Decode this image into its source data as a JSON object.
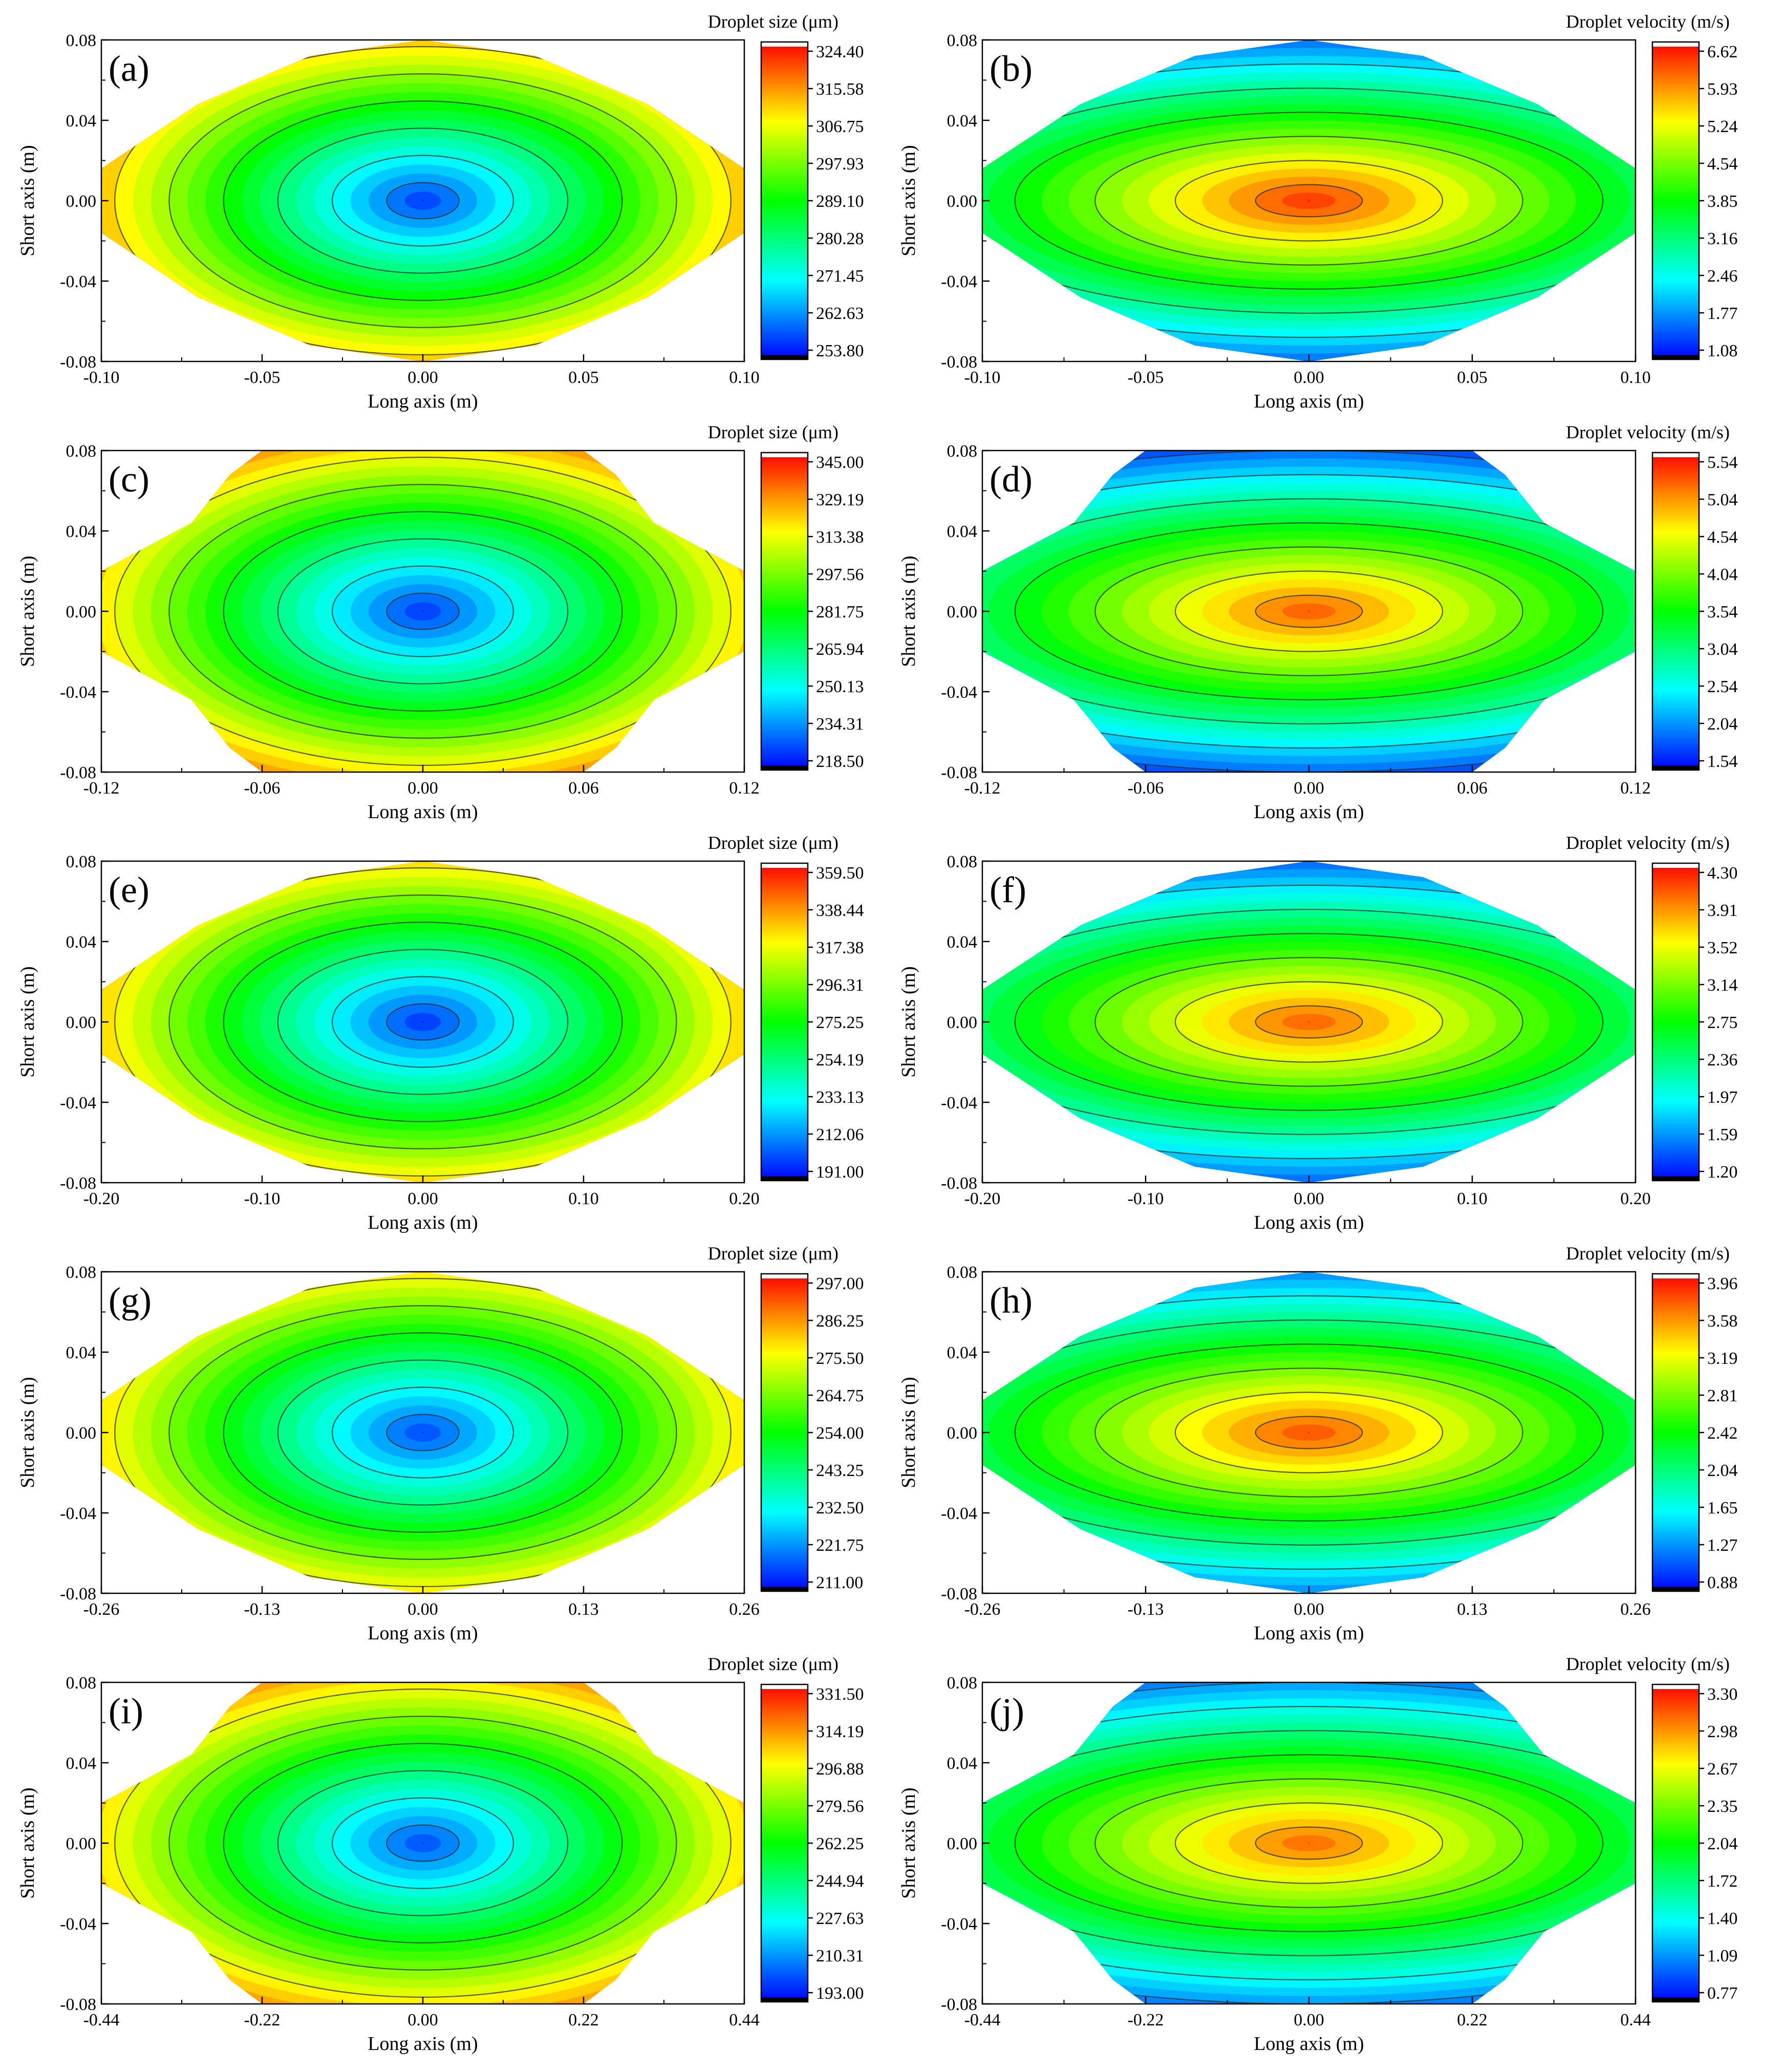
{
  "figure": {
    "long_axis_label": "Long axis (m)",
    "short_axis_label": "Short axis (m)",
    "y_ticks": [
      "-0.08",
      "-0.04",
      "0.00",
      "0.04",
      "0.08"
    ]
  },
  "chart_data": [
    {
      "type": "heatmap",
      "panel": "(a)",
      "quantity": "size",
      "colorbar_title": "Droplet size (μm)",
      "colorbar_ticks": [
        "324.40",
        "315.58",
        "306.75",
        "297.93",
        "289.10",
        "280.28",
        "271.45",
        "262.63",
        "253.80"
      ],
      "x_ticks": [
        "-0.10",
        "-0.05",
        "0.00",
        "0.05",
        "0.10"
      ],
      "xlim": [
        -0.1,
        0.1
      ],
      "ylim": [
        -0.08,
        0.08
      ],
      "zlim": [
        253.8,
        324.4
      ],
      "xlabel": "Long axis (m)",
      "ylabel": "Short axis (m)",
      "center_value": 256,
      "edge_value": 322,
      "outline": "diamond"
    },
    {
      "type": "heatmap",
      "panel": "(b)",
      "quantity": "velocity",
      "colorbar_title": "Droplet velocity (m/s)",
      "colorbar_ticks": [
        "6.62",
        "5.93",
        "5.24",
        "4.54",
        "3.85",
        "3.16",
        "2.46",
        "1.77",
        "1.08"
      ],
      "x_ticks": [
        "-0.10",
        "-0.05",
        "0.00",
        "0.05",
        "0.10"
      ],
      "xlim": [
        -0.1,
        0.1
      ],
      "ylim": [
        -0.08,
        0.08
      ],
      "zlim": [
        1.08,
        6.62
      ],
      "xlabel": "Long axis (m)",
      "ylabel": "Short axis (m)",
      "center_value": 6.5,
      "edge_value": 1.3,
      "outline": "diamond"
    },
    {
      "type": "heatmap",
      "panel": "(c)",
      "quantity": "size",
      "colorbar_title": "Droplet size (μm)",
      "colorbar_ticks": [
        "345.00",
        "329.19",
        "313.38",
        "297.56",
        "281.75",
        "265.94",
        "250.13",
        "234.31",
        "218.50"
      ],
      "x_ticks": [
        "-0.12",
        "-0.06",
        "0.00",
        "0.06",
        "0.12"
      ],
      "xlim": [
        -0.12,
        0.12
      ],
      "ylim": [
        -0.08,
        0.08
      ],
      "zlim": [
        218.5,
        345.0
      ],
      "xlabel": "Long axis (m)",
      "ylabel": "Short axis (m)",
      "center_value": 222,
      "edge_value": 335,
      "outline": "wide"
    },
    {
      "type": "heatmap",
      "panel": "(d)",
      "quantity": "velocity",
      "colorbar_title": "Droplet velocity (m/s)",
      "colorbar_ticks": [
        "5.54",
        "5.04",
        "4.54",
        "4.04",
        "3.54",
        "3.04",
        "2.54",
        "2.04",
        "1.54"
      ],
      "x_ticks": [
        "-0.12",
        "-0.06",
        "0.00",
        "0.06",
        "0.12"
      ],
      "xlim": [
        -0.12,
        0.12
      ],
      "ylim": [
        -0.08,
        0.08
      ],
      "zlim": [
        1.54,
        5.54
      ],
      "xlabel": "Long axis (m)",
      "ylabel": "Short axis (m)",
      "center_value": 5.3,
      "edge_value": 1.7,
      "outline": "wide"
    },
    {
      "type": "heatmap",
      "panel": "(e)",
      "quantity": "size",
      "colorbar_title": "Droplet size (μm)",
      "colorbar_ticks": [
        "359.50",
        "338.44",
        "317.38",
        "296.31",
        "275.25",
        "254.19",
        "233.13",
        "212.06",
        "191.00"
      ],
      "x_ticks": [
        "-0.20",
        "-0.10",
        "0.00",
        "0.10",
        "0.20"
      ],
      "xlim": [
        -0.2,
        0.2
      ],
      "ylim": [
        -0.08,
        0.08
      ],
      "zlim": [
        191.0,
        359.5
      ],
      "xlabel": "Long axis (m)",
      "ylabel": "Short axis (m)",
      "center_value": 195,
      "edge_value": 350,
      "outline": "diamond"
    },
    {
      "type": "heatmap",
      "panel": "(f)",
      "quantity": "velocity",
      "colorbar_title": "Droplet velocity (m/s)",
      "colorbar_ticks": [
        "4.30",
        "3.91",
        "3.52",
        "3.14",
        "2.75",
        "2.36",
        "1.97",
        "1.59",
        "1.20"
      ],
      "x_ticks": [
        "-0.20",
        "-0.10",
        "0.00",
        "0.10",
        "0.20"
      ],
      "xlim": [
        -0.2,
        0.2
      ],
      "ylim": [
        -0.08,
        0.08
      ],
      "zlim": [
        1.2,
        4.3
      ],
      "xlabel": "Long axis (m)",
      "ylabel": "Short axis (m)",
      "center_value": 4.1,
      "edge_value": 1.3,
      "outline": "diamond"
    },
    {
      "type": "heatmap",
      "panel": "(g)",
      "quantity": "size",
      "colorbar_title": "Droplet size (μm)",
      "colorbar_ticks": [
        "297.00",
        "286.25",
        "275.50",
        "264.75",
        "254.00",
        "243.25",
        "232.50",
        "221.75",
        "211.00"
      ],
      "x_ticks": [
        "-0.26",
        "-0.13",
        "0.00",
        "0.13",
        "0.26"
      ],
      "xlim": [
        -0.26,
        0.26
      ],
      "ylim": [
        -0.08,
        0.08
      ],
      "zlim": [
        211.0,
        297.0
      ],
      "xlabel": "Long axis (m)",
      "ylabel": "Short axis (m)",
      "center_value": 215,
      "edge_value": 290,
      "outline": "diamond"
    },
    {
      "type": "heatmap",
      "panel": "(h)",
      "quantity": "velocity",
      "colorbar_title": "Droplet velocity (m/s)",
      "colorbar_ticks": [
        "3.96",
        "3.58",
        "3.19",
        "2.81",
        "2.42",
        "2.04",
        "1.65",
        "1.27",
        "0.88"
      ],
      "x_ticks": [
        "-0.26",
        "-0.13",
        "0.00",
        "0.13",
        "0.26"
      ],
      "xlim": [
        -0.26,
        0.26
      ],
      "ylim": [
        -0.08,
        0.08
      ],
      "zlim": [
        0.88,
        3.96
      ],
      "xlabel": "Long axis (m)",
      "ylabel": "Short axis (m)",
      "center_value": 3.8,
      "edge_value": 1.1,
      "outline": "diamond"
    },
    {
      "type": "heatmap",
      "panel": "(i)",
      "quantity": "size",
      "colorbar_title": "Droplet size (μm)",
      "colorbar_ticks": [
        "331.50",
        "314.19",
        "296.88",
        "279.56",
        "262.25",
        "244.94",
        "227.63",
        "210.31",
        "193.00"
      ],
      "x_ticks": [
        "-0.44",
        "-0.22",
        "0.00",
        "0.22",
        "0.44"
      ],
      "xlim": [
        -0.44,
        0.44
      ],
      "ylim": [
        -0.08,
        0.08
      ],
      "zlim": [
        193.0,
        331.5
      ],
      "xlabel": "Long axis (m)",
      "ylabel": "Short axis (m)",
      "center_value": 200,
      "edge_value": 320,
      "outline": "wide"
    },
    {
      "type": "heatmap",
      "panel": "(j)",
      "quantity": "velocity",
      "colorbar_title": "Droplet velocity (m/s)",
      "colorbar_ticks": [
        "3.30",
        "2.98",
        "2.67",
        "2.35",
        "2.04",
        "1.72",
        "1.40",
        "1.09",
        "0.77"
      ],
      "x_ticks": [
        "-0.44",
        "-0.22",
        "0.00",
        "0.22",
        "0.44"
      ],
      "xlim": [
        -0.44,
        0.44
      ],
      "ylim": [
        -0.08,
        0.08
      ],
      "zlim": [
        0.77,
        3.3
      ],
      "xlabel": "Long axis (m)",
      "ylabel": "Short axis (m)",
      "center_value": 3.1,
      "edge_value": 1.0,
      "outline": "wide"
    }
  ]
}
